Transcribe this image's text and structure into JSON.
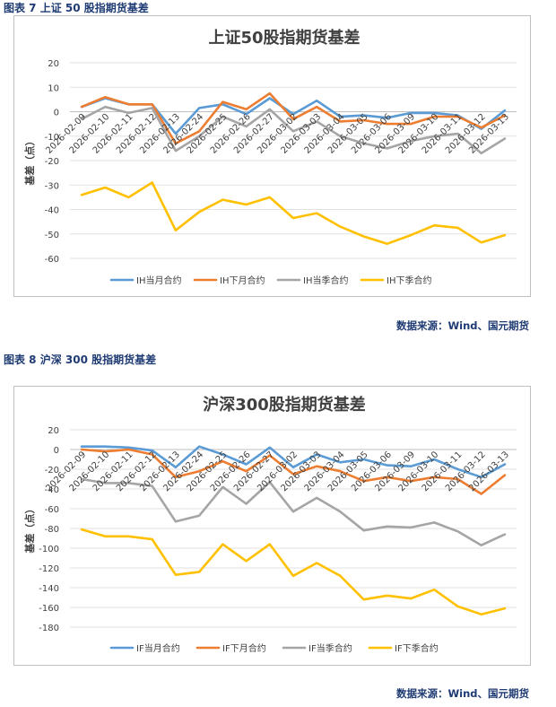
{
  "figures": [
    {
      "caption": "图表 7  上证 50 股指期货基差",
      "source": "数据来源：Wind、国元期货"
    },
    {
      "caption": "图表 8   沪深 300 股指期货基差",
      "source": "数据来源：Wind、国元期货"
    }
  ],
  "chart_data": [
    {
      "type": "line",
      "title": "上证50股指期货基差",
      "xlabel": "",
      "ylabel": "基差（点）",
      "ylim": [
        -60,
        20
      ],
      "yticks": [
        20,
        10,
        0,
        -10,
        -20,
        -30,
        -40,
        -50,
        -60
      ],
      "grid": true,
      "legend": "bottom",
      "categories": [
        "2026-02-09",
        "2026-02-10",
        "2026-02-11",
        "2026-02-12",
        "2026-02-13",
        "2026-02-24",
        "2026-02-25",
        "2026-02-26",
        "2026-02-27",
        "2026-03-02",
        "2026-03-03",
        "2026-03-04",
        "2026-03-05",
        "2026-03-06",
        "2026-03-09",
        "2026-03-10",
        "2026-03-11",
        "2026-03-12",
        "2026-03-13"
      ],
      "series": [
        {
          "name": "IH当月合约",
          "color": "#5b9bd5",
          "values": [
            2,
            5.5,
            3,
            3,
            -9,
            1.5,
            3,
            -1,
            5.5,
            -1,
            4.5,
            -2,
            -1.5,
            -2.5,
            -0.5,
            -0.5,
            -1.5,
            -7,
            0.5
          ]
        },
        {
          "name": "IH下月合约",
          "color": "#ed7d31",
          "values": [
            2,
            6,
            3,
            3,
            -13,
            -8,
            4,
            1,
            7.5,
            -3,
            2,
            -4,
            -3.5,
            -5,
            -5,
            -2,
            -2,
            -6.5,
            -1.5
          ]
        },
        {
          "name": "IH当季合约",
          "color": "#a5a5a5",
          "values": [
            -3,
            2,
            -0.5,
            1.5,
            -16,
            -10,
            -2,
            -6,
            1,
            -8,
            -4,
            -10,
            -13,
            -15,
            -12,
            -10,
            -9,
            -17,
            -11
          ]
        },
        {
          "name": "IH下季合约",
          "color": "#ffc000",
          "values": [
            -34,
            -31,
            -35,
            -29,
            -48.5,
            -41,
            -36,
            -38,
            -35,
            -43.5,
            -41.5,
            -47,
            -51,
            -54,
            -50.5,
            -46.5,
            -47.5,
            -53.5,
            -50.5
          ]
        }
      ]
    },
    {
      "type": "line",
      "title": "沪深300股指期货基差",
      "xlabel": "",
      "ylabel": "基差（点）",
      "ylim": [
        -180,
        20
      ],
      "yticks": [
        20,
        0,
        -20,
        -40,
        -60,
        -80,
        -100,
        -120,
        -140,
        -160,
        -180
      ],
      "grid": true,
      "legend": "bottom",
      "categories": [
        "2026-02-09",
        "2026-02-10",
        "2026-02-11",
        "2026-02-12",
        "2026-02-13",
        "2026-02-24",
        "2026-02-25",
        "2026-02-26",
        "2026-02-27",
        "2026-03-02",
        "2026-03-03",
        "2026-03-04",
        "2026-03-05",
        "2026-03-06",
        "2026-03-09",
        "2026-03-10",
        "2026-03-11",
        "2026-03-12",
        "2026-03-13"
      ],
      "series": [
        {
          "name": "IF当月合约",
          "color": "#5b9bd5",
          "values": [
            3,
            3,
            2,
            -1,
            -18,
            3,
            -5,
            -15,
            2,
            -18,
            -5,
            -13,
            -10,
            -16,
            -17,
            -10,
            -20,
            -28,
            -15
          ]
        },
        {
          "name": "IF下月合约",
          "color": "#ed7d31",
          "values": [
            0,
            -2,
            0,
            -5,
            -28,
            -22,
            -12,
            -22,
            -6,
            -25,
            -17,
            -22,
            -32,
            -28,
            -32,
            -28,
            -30,
            -45,
            -26
          ]
        },
        {
          "name": "IF当季合约",
          "color": "#a5a5a5",
          "values": [
            -30,
            -34,
            -34,
            -37,
            -73,
            -67,
            -38,
            -55,
            -33,
            -63,
            -49,
            -63,
            -82,
            -78,
            -79,
            -74,
            -83,
            -97,
            -86
          ]
        },
        {
          "name": "IF下季合约",
          "color": "#ffc000",
          "values": [
            -81,
            -88,
            -88,
            -91,
            -127,
            -124,
            -96,
            -113,
            -96,
            -128,
            -115,
            -128,
            -152,
            -148,
            -151,
            -142,
            -159,
            -167,
            -161
          ]
        }
      ]
    }
  ]
}
